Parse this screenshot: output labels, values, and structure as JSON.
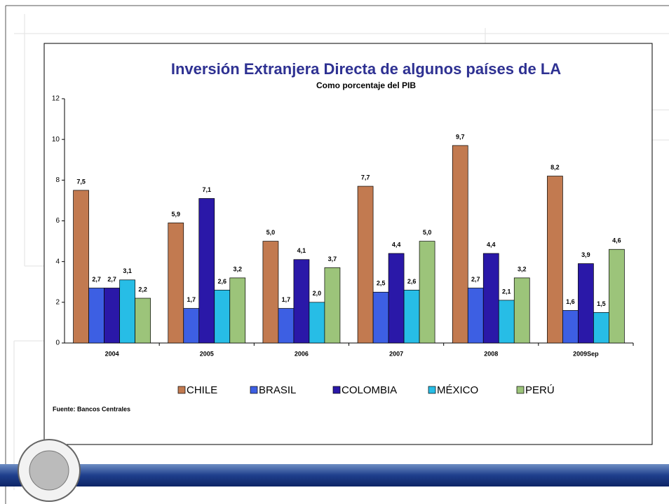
{
  "chart_data": {
    "type": "bar",
    "title": "Inversión Extranjera Directa de algunos países de LA",
    "subtitle": "Como porcentaje del PIB",
    "source": "Fuente: Bancos Centrales",
    "categories": [
      "2004",
      "2005",
      "2006",
      "2007",
      "2008",
      "2009Sep"
    ],
    "series": [
      {
        "name": "CHILE",
        "color": "#c27a50",
        "values": [
          7.5,
          5.9,
          5.0,
          7.7,
          9.7,
          8.2
        ],
        "value_labels": [
          "7,5",
          "5,9",
          "5,0",
          "7,7",
          "9,7",
          "8,2"
        ]
      },
      {
        "name": "BRASIL",
        "color": "#3d5fe3",
        "values": [
          2.7,
          1.7,
          1.7,
          2.5,
          2.7,
          1.6
        ],
        "value_labels": [
          "2,7",
          "1,7",
          "1,7",
          "2,5",
          "2,7",
          "1,6"
        ]
      },
      {
        "name": "COLOMBIA",
        "color": "#2a18a8",
        "values": [
          2.7,
          7.1,
          4.1,
          4.4,
          4.4,
          3.9
        ],
        "value_labels": [
          "2,7",
          "7,1",
          "4,1",
          "4,4",
          "4,4",
          "3,9"
        ]
      },
      {
        "name": "MÉXICO",
        "color": "#27bde6",
        "values": [
          3.1,
          2.6,
          2.0,
          2.6,
          2.1,
          1.5
        ],
        "value_labels": [
          "3,1",
          "2,6",
          "2,0",
          "2,6",
          "2,1",
          "1,5"
        ]
      },
      {
        "name": "PERÚ",
        "color": "#9cc47a",
        "values": [
          2.2,
          3.2,
          3.7,
          5.0,
          3.2,
          4.6
        ],
        "value_labels": [
          "2,2",
          "3,2",
          "3,7",
          "5,0",
          "3,2",
          "4,6"
        ]
      }
    ],
    "ylim": [
      0,
      12
    ],
    "yticks": [
      0,
      2,
      4,
      6,
      8,
      10,
      12
    ],
    "grid": false
  }
}
